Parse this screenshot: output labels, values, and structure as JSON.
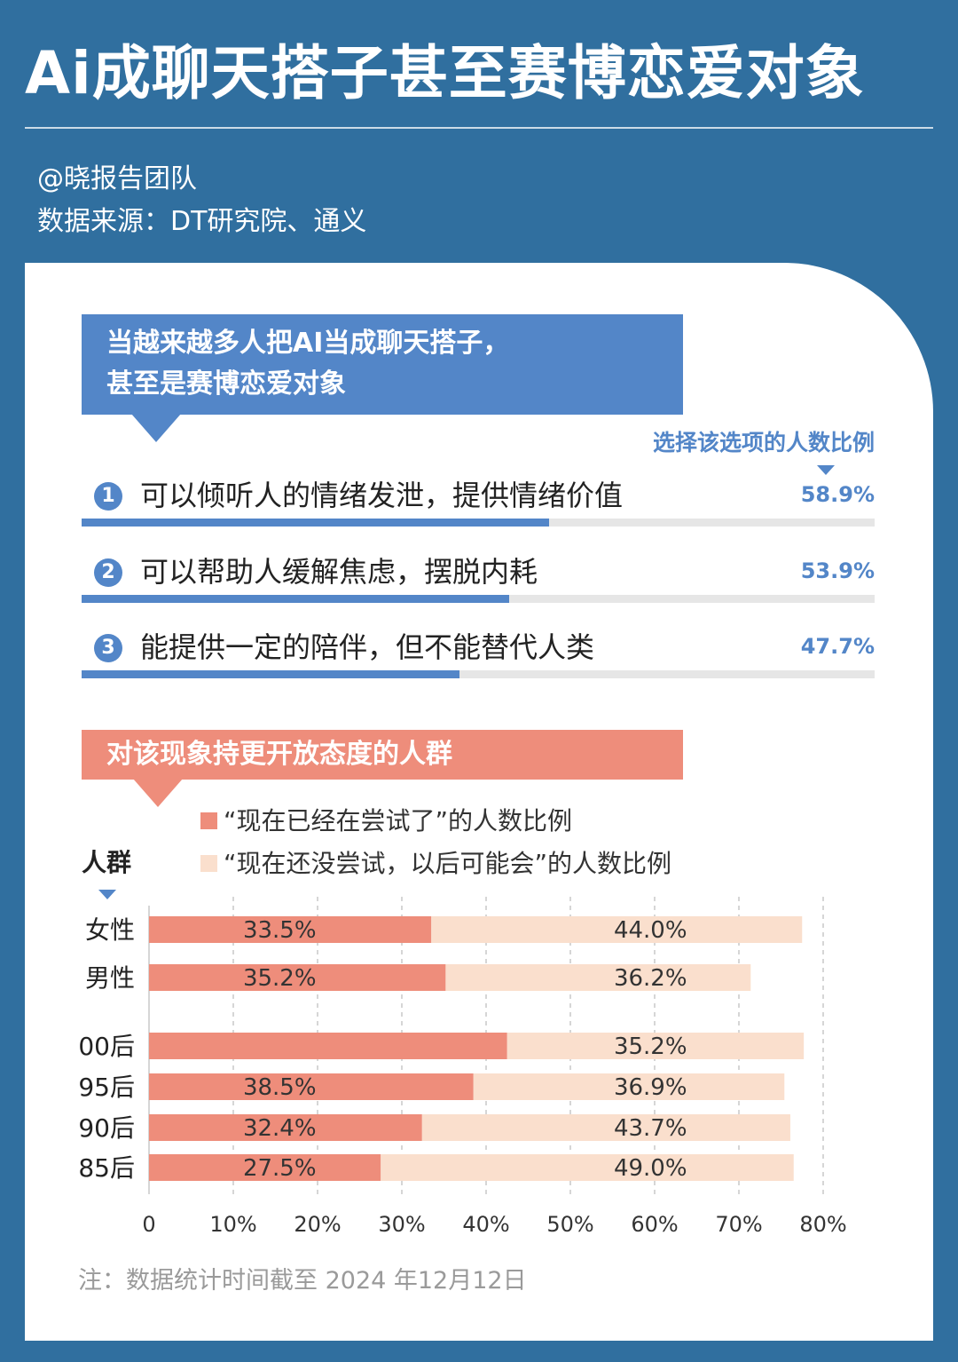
{
  "title": "Ai成聊天搭子甚至赛博恋爱对象",
  "author": "@晓报告团队",
  "source": "数据来源：DT研究院、通义",
  "section1": {
    "banner_line1": "当越来越多人把AI当成聊天搭子，",
    "banner_line2": "甚至是赛博恋爱对象",
    "pct_header": "选择该选项的人数比例",
    "options": [
      {
        "num": "1",
        "text": "可以倾听人的情绪发泄，提供情绪价值",
        "pct": "58.9%",
        "value": 58.9
      },
      {
        "num": "2",
        "text": "可以帮助人缓解焦虑，摆脱内耗",
        "pct": "53.9%",
        "value": 53.9
      },
      {
        "num": "3",
        "text": "能提供一定的陪伴，但不能替代人类",
        "pct": "47.7%",
        "value": 47.7
      }
    ],
    "colors": {
      "accent": "#5386c8",
      "track": "#e6e6e6"
    }
  },
  "section2": {
    "banner": "对该现象持更开放态度的人群",
    "group_header": "人群",
    "legend": [
      {
        "label": "“现在已经在尝试了”的人数比例",
        "color": "#ee8d7b"
      },
      {
        "label": "“现在还没尝试，以后可能会”的人数比例",
        "color": "#fadfcd"
      }
    ]
  },
  "chart_data": {
    "type": "bar",
    "orientation": "horizontal",
    "stacked": true,
    "categories": [
      "女性",
      "男性",
      "00后",
      "95后",
      "90后",
      "85后"
    ],
    "series": [
      {
        "name": "“现在已经在尝试了”的人数比例",
        "values": [
          33.5,
          35.2,
          42.5,
          38.5,
          32.4,
          27.5
        ],
        "labels": [
          "33.5%",
          "35.2%",
          "",
          "38.5%",
          "32.4%",
          "27.5%"
        ],
        "color": "#ee8d7b"
      },
      {
        "name": "“现在还没尝试，以后可能会”的人数比例",
        "values": [
          44.0,
          36.2,
          35.2,
          36.9,
          43.7,
          49.0
        ],
        "labels": [
          "44.0%",
          "36.2%",
          "35.2%",
          "36.9%",
          "43.7%",
          "49.0%"
        ],
        "color": "#fadfcd"
      }
    ],
    "xlim": [
      0,
      80
    ],
    "xticks": [
      "0",
      "10%",
      "20%",
      "30%",
      "40%",
      "50%",
      "60%",
      "70%",
      "80%"
    ],
    "grid": "vertical-dashed",
    "legend_position": "top"
  },
  "footnote": "注：数据统计时间截至 2024 年12月12日"
}
